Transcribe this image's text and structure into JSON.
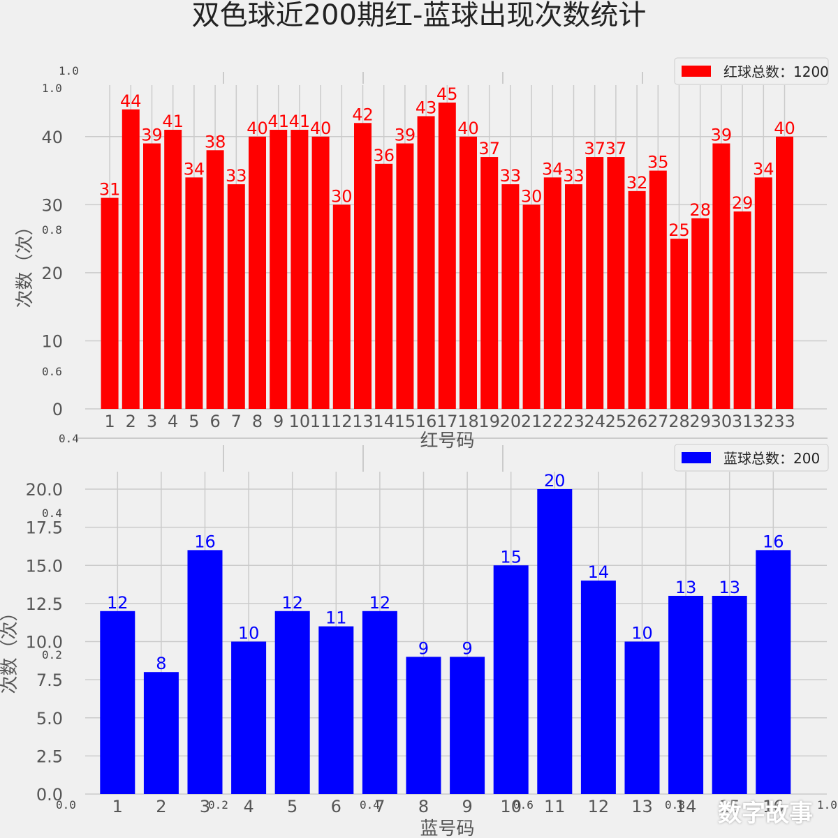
{
  "title": "双色球近200期红-蓝球出现次数统计",
  "watermark": "数字故事",
  "ghost_axis": {
    "y_ticks": [
      "0.0",
      "0.2",
      "0.4",
      "0.6",
      "0.8",
      "1.0"
    ],
    "x_ticks": [
      "0.0",
      "0.2",
      "0.4",
      "0.6",
      "0.8",
      "1.0"
    ]
  },
  "colors": {
    "red": "#ff0000",
    "blue": "#0000ff",
    "grid": "#cbcbcb",
    "background": "#f0f0f0"
  },
  "chart_data": [
    {
      "type": "bar",
      "categories": [
        "1",
        "2",
        "3",
        "4",
        "5",
        "6",
        "7",
        "8",
        "9",
        "10",
        "11",
        "12",
        "13",
        "14",
        "15",
        "16",
        "17",
        "18",
        "19",
        "20",
        "21",
        "22",
        "23",
        "24",
        "25",
        "26",
        "27",
        "28",
        "29",
        "30",
        "31",
        "32",
        "33"
      ],
      "values": [
        31,
        44,
        39,
        41,
        34,
        38,
        33,
        40,
        41,
        41,
        40,
        30,
        42,
        36,
        39,
        43,
        45,
        40,
        37,
        33,
        30,
        34,
        33,
        37,
        37,
        32,
        35,
        25,
        28,
        39,
        29,
        34,
        40
      ],
      "xlabel": "红号码",
      "ylabel": "次数（次）",
      "yticks": [
        0,
        10,
        20,
        30,
        40
      ],
      "ytick_labels": [
        "0",
        "10",
        "20",
        "30",
        "40"
      ],
      "ylim": [
        0,
        45
      ],
      "legend": "红球总数：1200",
      "legend_position": "top-right",
      "color": "#ff0000",
      "grid": true
    },
    {
      "type": "bar",
      "categories": [
        "1",
        "2",
        "3",
        "4",
        "5",
        "6",
        "7",
        "8",
        "9",
        "10",
        "11",
        "12",
        "13",
        "14",
        "15",
        "16"
      ],
      "values": [
        12,
        8,
        16,
        10,
        12,
        11,
        12,
        9,
        9,
        15,
        20,
        14,
        10,
        13,
        13,
        16
      ],
      "xlabel": "蓝号码",
      "ylabel": "次数（次）",
      "yticks": [
        0,
        2.5,
        5,
        7.5,
        10,
        12.5,
        15,
        17.5,
        20
      ],
      "ytick_labels": [
        "0.0",
        "2.5",
        "5.0",
        "7.5",
        "10.0",
        "12.5",
        "15.0",
        "17.5",
        "20.0"
      ],
      "ylim": [
        0,
        20
      ],
      "legend": "蓝球总数：200",
      "legend_position": "top-right",
      "color": "#0000ff",
      "grid": true
    }
  ]
}
